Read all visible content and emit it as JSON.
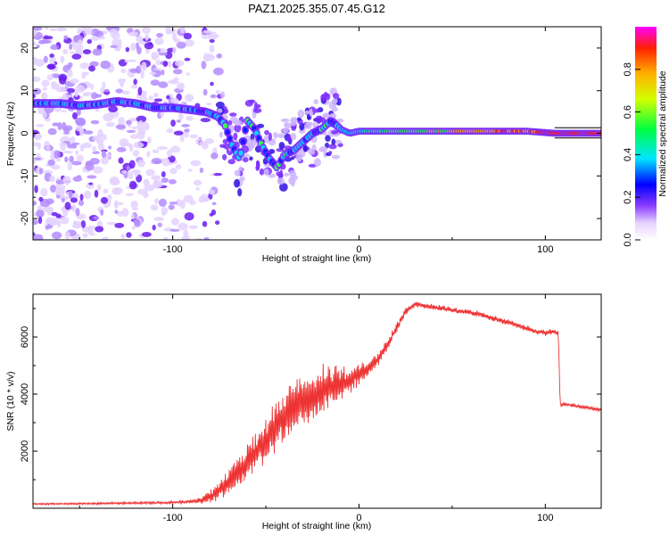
{
  "chart_data": [
    {
      "type": "heatmap",
      "title": "PAZ1.2025.355.07.45.G12",
      "xlabel": "Height of straight line (km)",
      "ylabel": "Frequency (Hz)",
      "xlim": [
        -175,
        130
      ],
      "ylim": [
        -25,
        25
      ],
      "x_ticks": [
        -100,
        0,
        100
      ],
      "x_tick_labels": [
        "-100",
        "0",
        "100"
      ],
      "y_ticks": [
        -20,
        -10,
        0,
        10,
        20
      ],
      "y_tick_labels": [
        "-20",
        "-10",
        "0",
        "10",
        "20"
      ],
      "colorbar": {
        "label": "Normalized spectral amplitude",
        "range": [
          0,
          1
        ],
        "ticks": [
          0.0,
          0.2,
          0.4,
          0.6,
          0.8
        ],
        "tick_labels": [
          "0.0",
          "0.2",
          "0.4",
          "0.6",
          "0.8"
        ]
      },
      "dominant_frequency_trace": [
        {
          "x": -170,
          "y": 7
        },
        {
          "x": -160,
          "y": 7
        },
        {
          "x": -150,
          "y": 6.5
        },
        {
          "x": -140,
          "y": 6.8
        },
        {
          "x": -130,
          "y": 7.5
        },
        {
          "x": -120,
          "y": 7
        },
        {
          "x": -110,
          "y": 6
        },
        {
          "x": -100,
          "y": 6
        },
        {
          "x": -90,
          "y": 5.5
        },
        {
          "x": -82,
          "y": 5
        },
        {
          "x": -76,
          "y": 4
        },
        {
          "x": -72,
          "y": 2
        },
        {
          "x": -68,
          "y": -3
        },
        {
          "x": -64,
          "y": -6
        },
        {
          "x": -60,
          "y": 3
        },
        {
          "x": -56,
          "y": 1
        },
        {
          "x": -52,
          "y": -3
        },
        {
          "x": -48,
          "y": -6
        },
        {
          "x": -44,
          "y": -8
        },
        {
          "x": -40,
          "y": -5
        },
        {
          "x": -35,
          "y": -4
        },
        {
          "x": -30,
          "y": -2
        },
        {
          "x": -25,
          "y": 0
        },
        {
          "x": -20,
          "y": 1
        },
        {
          "x": -15,
          "y": 3
        },
        {
          "x": -10,
          "y": 1
        },
        {
          "x": -5,
          "y": 0
        },
        {
          "x": 0,
          "y": 0.5
        },
        {
          "x": 10,
          "y": 0.5
        },
        {
          "x": 30,
          "y": 0.5
        },
        {
          "x": 60,
          "y": 0.5
        },
        {
          "x": 90,
          "y": 0.5
        },
        {
          "x": 105,
          "y": 0
        },
        {
          "x": 130,
          "y": 0
        }
      ]
    },
    {
      "type": "line",
      "xlabel": "Height of straight line (km)",
      "ylabel": "SNR (10 * v/v)",
      "xlim": [
        -175,
        130
      ],
      "ylim": [
        0,
        7500
      ],
      "x_ticks": [
        -100,
        0,
        100
      ],
      "x_tick_labels": [
        "-100",
        "0",
        "100"
      ],
      "y_ticks": [
        2000,
        4000,
        6000
      ],
      "y_tick_labels": [
        "2000",
        "4000",
        "6000"
      ],
      "series": [
        {
          "name": "SNR",
          "color": "#ee3333",
          "x": [
            -175,
            -150,
            -125,
            -100,
            -90,
            -85,
            -80,
            -75,
            -70,
            -65,
            -60,
            -55,
            -50,
            -45,
            -40,
            -35,
            -30,
            -25,
            -20,
            -15,
            -10,
            -5,
            0,
            5,
            10,
            15,
            20,
            25,
            30,
            35,
            40,
            45,
            50,
            55,
            60,
            65,
            70,
            75,
            80,
            85,
            90,
            95,
            100,
            105,
            107,
            108,
            110,
            115,
            120,
            125,
            130
          ],
          "values": [
            150,
            160,
            180,
            200,
            230,
            280,
            400,
            600,
            900,
            1300,
            1600,
            2000,
            2400,
            2800,
            3200,
            3500,
            3700,
            3900,
            4100,
            4300,
            4400,
            4500,
            4700,
            4900,
            5200,
            5700,
            6300,
            6900,
            7150,
            7100,
            7050,
            7000,
            6950,
            6900,
            6850,
            6800,
            6700,
            6600,
            6500,
            6400,
            6300,
            6200,
            6150,
            6200,
            6100,
            3600,
            3650,
            3600,
            3550,
            3500,
            3450
          ],
          "noise_amplitude": [
            30,
            30,
            40,
            40,
            60,
            100,
            200,
            300,
            400,
            500,
            600,
            700,
            800,
            800,
            900,
            900,
            900,
            800,
            800,
            700,
            600,
            500,
            400,
            300,
            250,
            200,
            150,
            120,
            100,
            100,
            100,
            100,
            100,
            100,
            100,
            100,
            100,
            100,
            100,
            100,
            100,
            100,
            100,
            100,
            100,
            60,
            60,
            60,
            60,
            60,
            60
          ]
        }
      ]
    }
  ]
}
